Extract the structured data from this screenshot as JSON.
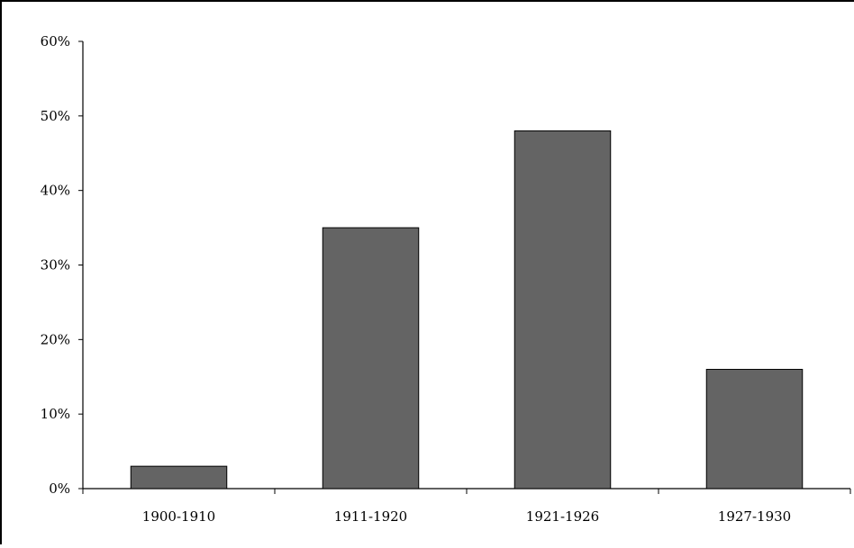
{
  "chart_data": {
    "type": "bar",
    "title": "",
    "xlabel": "",
    "ylabel": "",
    "categories": [
      "1900-1910",
      "1911-1920",
      "1921-1926",
      "1927-1930"
    ],
    "values": [
      3,
      35,
      48,
      16
    ],
    "ylim": [
      0,
      60
    ],
    "yticks": [
      0,
      10,
      20,
      30,
      40,
      50,
      60
    ],
    "ytick_labels": [
      "0%",
      "10%",
      "20%",
      "30%",
      "40%",
      "50%",
      "60%"
    ],
    "grid": false,
    "legend": "none",
    "colors": {
      "bar_fill": "#646464",
      "bar_stroke": "#000000",
      "axis": "#000000",
      "text": "#000000"
    }
  }
}
